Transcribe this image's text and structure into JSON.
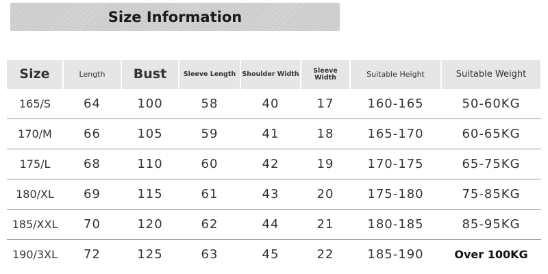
{
  "title": "Size Information",
  "headers": [
    "Size",
    "Length",
    "Bust",
    "Sleeve Length",
    "Shoulder Width",
    "Sleeve Width",
    "Suitable Height",
    "Suitable Weight"
  ],
  "rows": [
    [
      "165/S",
      "64",
      "100",
      "58",
      "40",
      "17",
      "160-165",
      "50-60KG"
    ],
    [
      "170/M",
      "66",
      "105",
      "59",
      "41",
      "18",
      "165-170",
      "60-65KG"
    ],
    [
      "175/L",
      "68",
      "110",
      "60",
      "42",
      "19",
      "170-175",
      "65-75KG"
    ],
    [
      "180/XL",
      "69",
      "115",
      "61",
      "43",
      "20",
      "175-180",
      "75-85KG"
    ],
    [
      "185/XXL",
      "70",
      "120",
      "62",
      "44",
      "21",
      "180-185",
      "85-95KG"
    ],
    [
      "190/3XL",
      "72",
      "125",
      "63",
      "45",
      "22",
      "185-190",
      "Over 100KG"
    ]
  ]
}
